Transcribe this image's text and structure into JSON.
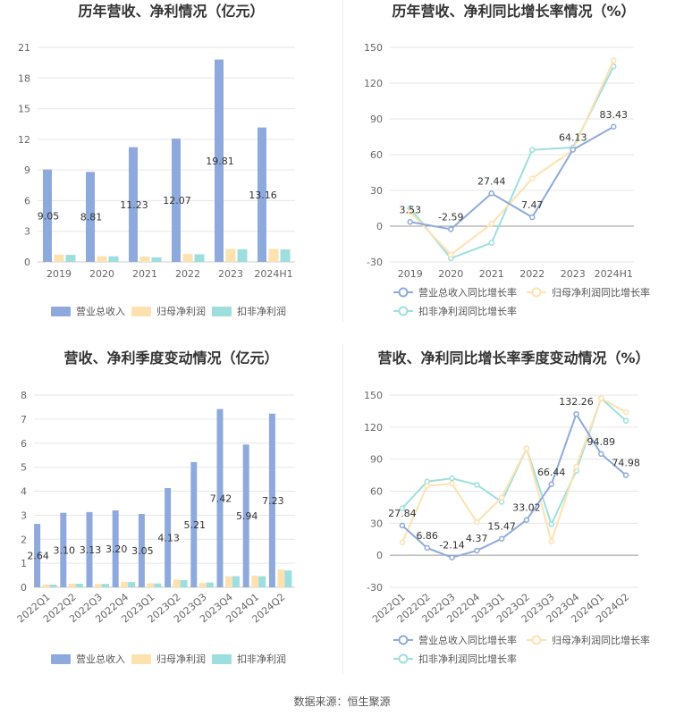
{
  "colors": {
    "revenue": "#8eaadc",
    "parent_profit": "#fde2b0",
    "deducted_profit": "#9ddfdf",
    "line_revenue": "#8eaadc",
    "line_parent": "#fde2b0",
    "line_deducted": "#9ddfdf",
    "grid": "#e6e6e6",
    "axis": "#cccccc"
  },
  "chart_data": [
    {
      "type": "bar",
      "title": "历年营收、净利情况（亿元）",
      "categories": [
        "2019",
        "2020",
        "2021",
        "2022",
        "2023",
        "2024H1"
      ],
      "ylim": [
        0,
        21
      ],
      "yticks": [
        0,
        3,
        6,
        9,
        12,
        15,
        18,
        21
      ],
      "series": [
        {
          "name": "营业总收入",
          "values": [
            9.05,
            8.81,
            11.23,
            12.07,
            19.81,
            13.16
          ],
          "labels": [
            "9.05",
            "8.81",
            "11.23",
            "12.07",
            "19.81",
            "13.16"
          ]
        },
        {
          "name": "归母净利润",
          "values": [
            0.72,
            0.55,
            0.52,
            0.78,
            1.28,
            1.28
          ]
        },
        {
          "name": "扣非净利润",
          "values": [
            0.69,
            0.55,
            0.45,
            0.75,
            1.24,
            1.22
          ]
        }
      ],
      "legend": "bottom"
    },
    {
      "type": "line",
      "title": "历年营收、净利同比增长率情况（%）",
      "categories": [
        "2019",
        "2020",
        "2021",
        "2022",
        "2023",
        "2024H1"
      ],
      "ylim": [
        -30,
        150
      ],
      "yticks": [
        -30,
        0,
        30,
        60,
        90,
        120,
        150
      ],
      "series": [
        {
          "name": "营业总收入同比增长率",
          "values": [
            3.53,
            -2.59,
            27.44,
            7.47,
            64.13,
            83.43
          ],
          "labels": [
            "3.53",
            "-2.59",
            "27.44",
            "7.47",
            "64.13",
            "83.43"
          ]
        },
        {
          "name": "归母净利润同比增长率",
          "values": [
            12,
            -24,
            2,
            40,
            64,
            139
          ]
        },
        {
          "name": "扣非净利润同比增长率",
          "values": [
            15,
            -27,
            -14,
            64,
            66,
            134
          ]
        }
      ],
      "legend": "bottom"
    },
    {
      "type": "bar",
      "title": "营收、净利季度变动情况（亿元）",
      "categories": [
        "2022Q1",
        "2022Q2",
        "2022Q3",
        "2022Q4",
        "2023Q1",
        "2023Q2",
        "2023Q3",
        "2023Q4",
        "2024Q1",
        "2024Q2"
      ],
      "ylim": [
        0,
        8
      ],
      "yticks": [
        0,
        1,
        2,
        3,
        4,
        5,
        6,
        7,
        8
      ],
      "series": [
        {
          "name": "营业总收入",
          "values": [
            2.64,
            3.1,
            3.13,
            3.2,
            3.05,
            4.13,
            5.21,
            7.42,
            5.94,
            7.23
          ],
          "labels": [
            "2.64",
            "3.10",
            "3.13",
            "3.20",
            "3.05",
            "4.13",
            "5.21",
            "7.42",
            "5.94",
            "7.23"
          ]
        },
        {
          "name": "归母净利润",
          "values": [
            0.12,
            0.15,
            0.14,
            0.22,
            0.17,
            0.32,
            0.18,
            0.46,
            0.48,
            0.74
          ]
        },
        {
          "name": "扣非净利润",
          "values": [
            0.11,
            0.15,
            0.14,
            0.22,
            0.16,
            0.3,
            0.2,
            0.46,
            0.46,
            0.7
          ]
        }
      ],
      "legend": "bottom"
    },
    {
      "type": "line",
      "title": "营收、净利同比增长率季度变动情况（%）",
      "categories": [
        "2022Q1",
        "2022Q2",
        "2022Q3",
        "2022Q4",
        "2023Q1",
        "2023Q2",
        "2023Q3",
        "2023Q4",
        "2024Q1",
        "2024Q2"
      ],
      "ylim": [
        -30,
        150
      ],
      "yticks": [
        -30,
        0,
        30,
        60,
        90,
        120,
        150
      ],
      "series": [
        {
          "name": "营业总收入同比增长率",
          "values": [
            27.84,
            6.86,
            -2.14,
            4.37,
            15.47,
            33.02,
            66.44,
            132.26,
            94.89,
            74.98
          ],
          "labels": [
            "27.84",
            "6.86",
            "-2.14",
            "4.37",
            "15.47",
            "33.02",
            "66.44",
            "132.26",
            "94.89",
            "74.98"
          ]
        },
        {
          "name": "归母净利润同比增长率",
          "values": [
            12,
            65,
            67,
            31,
            54,
            100,
            13,
            83,
            147,
            134
          ]
        },
        {
          "name": "扣非净利润同比增长率",
          "values": [
            44,
            69,
            72,
            66,
            50,
            100,
            29,
            79,
            147,
            126
          ]
        }
      ],
      "legend": "bottom"
    }
  ],
  "footer": "数据来源：恒生聚源"
}
